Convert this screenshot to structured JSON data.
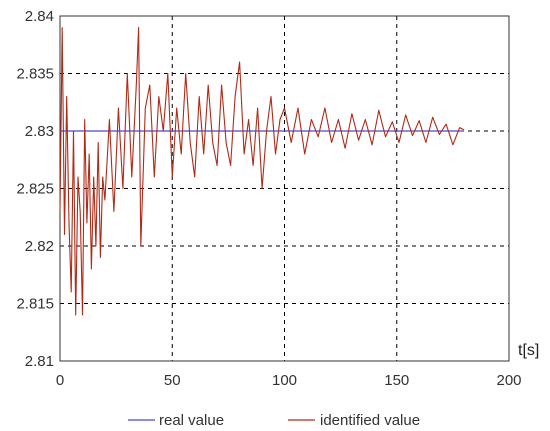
{
  "chart_data": {
    "type": "line",
    "title": "",
    "xlabel": "t[s]",
    "ylabel": "",
    "xlim": [
      0,
      200
    ],
    "ylim": [
      2.81,
      2.84
    ],
    "xticks": [
      0,
      50,
      100,
      150,
      200
    ],
    "xtick_labels": [
      "0",
      "50",
      "100",
      "150",
      "200"
    ],
    "yticks": [
      2.81,
      2.815,
      2.82,
      2.825,
      2.83,
      2.835,
      2.84
    ],
    "ytick_labels": [
      "2.81",
      "2.815",
      "2.82",
      "2.825",
      "2.83",
      "2.835",
      "2.84"
    ],
    "grid": true,
    "legend_position": "bottom",
    "series": [
      {
        "name": "real value",
        "color": "#4b4bcf",
        "x": [
          0,
          180
        ],
        "y": [
          2.83,
          2.83
        ]
      },
      {
        "name": "identified value",
        "color": "#b02a18",
        "x": [
          0,
          1,
          2,
          3,
          4,
          5,
          6,
          7,
          8,
          9,
          10,
          11,
          12,
          13,
          14,
          15,
          16,
          17,
          18,
          19,
          20,
          22,
          24,
          26,
          28,
          30,
          32,
          34,
          35,
          36,
          38,
          40,
          42,
          44,
          46,
          48,
          50,
          52,
          54,
          56,
          58,
          60,
          62,
          64,
          66,
          68,
          70,
          72,
          74,
          76,
          78,
          80,
          82,
          84,
          86,
          88,
          90,
          92,
          94,
          96,
          98,
          100,
          103,
          106,
          109,
          112,
          115,
          118,
          121,
          124,
          127,
          130,
          133,
          136,
          139,
          142,
          145,
          148,
          151,
          154,
          157,
          160,
          163,
          166,
          169,
          172,
          175,
          178,
          180
        ],
        "y": [
          2.823,
          2.839,
          2.821,
          2.833,
          2.822,
          2.816,
          2.83,
          2.814,
          2.826,
          2.823,
          2.814,
          2.831,
          2.822,
          2.828,
          2.818,
          2.826,
          2.82,
          2.829,
          2.819,
          2.826,
          2.824,
          2.831,
          2.823,
          2.832,
          2.825,
          2.835,
          2.826,
          2.834,
          2.839,
          2.82,
          2.832,
          2.834,
          2.826,
          2.833,
          2.83,
          2.835,
          2.826,
          2.832,
          2.828,
          2.835,
          2.829,
          2.826,
          2.833,
          2.828,
          2.834,
          2.829,
          2.827,
          2.834,
          2.829,
          2.827,
          2.833,
          2.836,
          2.828,
          2.831,
          2.827,
          2.832,
          2.825,
          2.83,
          2.833,
          2.828,
          2.831,
          2.832,
          2.829,
          2.832,
          2.828,
          2.831,
          2.8295,
          2.832,
          2.829,
          2.831,
          2.8285,
          2.8315,
          2.8292,
          2.831,
          2.8288,
          2.8318,
          2.8295,
          2.8308,
          2.829,
          2.8314,
          2.8296,
          2.8309,
          2.829,
          2.8312,
          2.8297,
          2.8306,
          2.8288,
          2.8303,
          2.8301
        ]
      }
    ]
  }
}
